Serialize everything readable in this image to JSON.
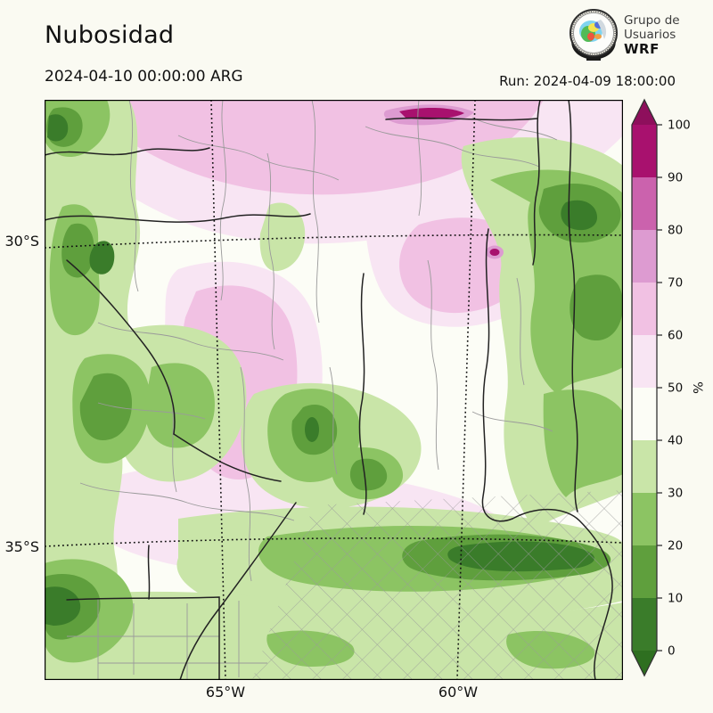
{
  "header": {
    "title": "Nubosidad",
    "valid_time": "2024-04-10 00:00:00 ARG",
    "run_label": "Run: 2024-04-09 18:00:00"
  },
  "logo": {
    "line1": "Grupo de",
    "line2": "Usuarios",
    "line3": "WRF"
  },
  "map": {
    "variable": "Nubosidad",
    "lat_labels": [
      "30°S",
      "35°S"
    ],
    "lon_labels": [
      "65°W",
      "60°W"
    ]
  },
  "colorbar": {
    "unit": "%",
    "min": 0,
    "max": 100,
    "ticks": [
      0,
      10,
      20,
      30,
      40,
      50,
      60,
      70,
      80,
      90,
      100
    ],
    "levels": [
      {
        "from": 0,
        "to": 10,
        "color": "#3a7c2a"
      },
      {
        "from": 10,
        "to": 20,
        "color": "#5f9f3d"
      },
      {
        "from": 20,
        "to": 30,
        "color": "#8cc463"
      },
      {
        "from": 30,
        "to": 40,
        "color": "#c9e5a8"
      },
      {
        "from": 40,
        "to": 50,
        "color": "#fcfdf6"
      },
      {
        "from": 50,
        "to": 60,
        "color": "#f8e5f3"
      },
      {
        "from": 60,
        "to": 70,
        "color": "#f1c1e3"
      },
      {
        "from": 70,
        "to": 80,
        "color": "#dd9bd1"
      },
      {
        "from": 80,
        "to": 90,
        "color": "#cb62ad"
      },
      {
        "from": 90,
        "to": 100,
        "color": "#a8116e"
      }
    ],
    "over_color": "#8e0f5c",
    "under_color": "#2e6f20"
  }
}
